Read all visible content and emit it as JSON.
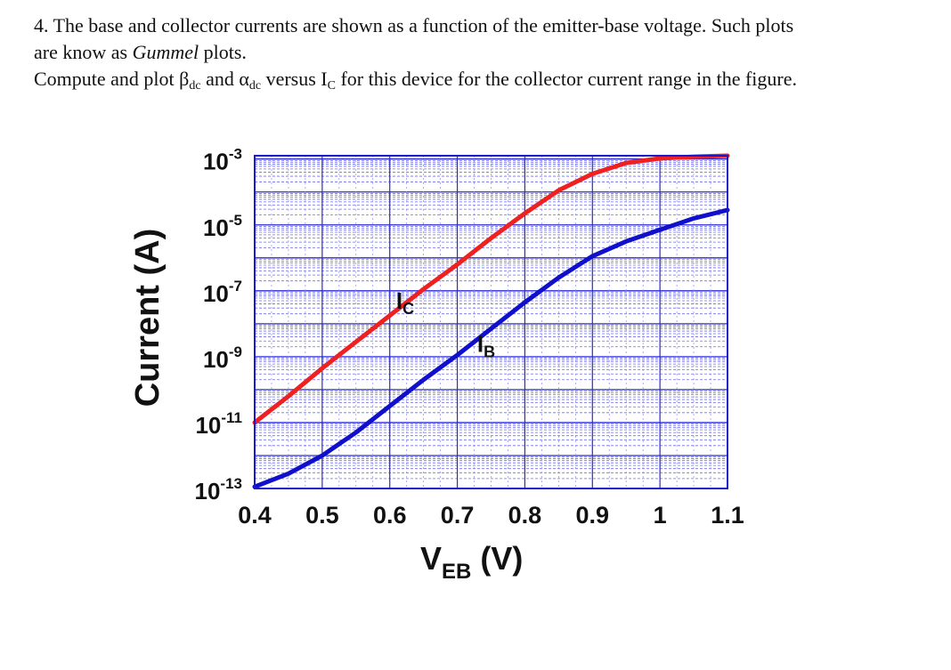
{
  "problem": {
    "line1": "4. The base and collector currents are shown as a function of the emitter-base voltage. Such plots",
    "line2_a": "are know as ",
    "line2_b": "Gummel",
    "line2_c": " plots.",
    "line3_a": "Compute and plot ",
    "beta": "β",
    "beta_sub": "dc",
    "line3_b": " and ",
    "alpha": "α",
    "alpha_sub": "dc",
    "line3_c": " versus I",
    "ic_sub": "C",
    "line3_d": " for this device for the collector current range in the figure."
  },
  "chart_data": {
    "type": "line",
    "title": "",
    "xlabel_main": "V",
    "xlabel_sub": "EB",
    "xlabel_unit": " (V)",
    "ylabel": "Current (A)",
    "xlim": [
      0.4,
      1.1
    ],
    "ylim_log10": [
      -13,
      -2.9
    ],
    "yscale": "log",
    "grid": true,
    "x_ticks": [
      "0.4",
      "0.5",
      "0.6",
      "0.7",
      "0.8",
      "0.9",
      "1",
      "1.1"
    ],
    "x_tick_values": [
      0.4,
      0.5,
      0.6,
      0.7,
      0.8,
      0.9,
      1.0,
      1.1
    ],
    "y_tick_values": [
      -3,
      -5,
      -7,
      -9,
      -11,
      -13
    ],
    "y_tick_base": "10",
    "y_tick_exponents": [
      "-3",
      "-5",
      "-7",
      "-9",
      "-11",
      "-13"
    ],
    "series": [
      {
        "name": "I",
        "name_sub": "C",
        "color": "#ee2020",
        "x": [
          0.4,
          0.45,
          0.5,
          0.55,
          0.6,
          0.65,
          0.7,
          0.75,
          0.8,
          0.85,
          0.9,
          0.95,
          1.0,
          1.05,
          1.1
        ],
        "log10_y": [
          -11.0,
          -10.2,
          -9.35,
          -8.55,
          -7.75,
          -6.95,
          -6.2,
          -5.4,
          -4.65,
          -3.95,
          -3.45,
          -3.12,
          -2.98,
          -2.93,
          -2.9
        ]
      },
      {
        "name": "I",
        "name_sub": "B",
        "color": "#1010cc",
        "x": [
          0.4,
          0.45,
          0.5,
          0.55,
          0.6,
          0.65,
          0.7,
          0.75,
          0.8,
          0.85,
          0.9,
          0.95,
          1.0,
          1.05,
          1.1
        ],
        "log10_y": [
          -12.95,
          -12.55,
          -12.0,
          -11.3,
          -10.5,
          -9.7,
          -8.95,
          -8.15,
          -7.35,
          -6.6,
          -5.95,
          -5.5,
          -5.15,
          -4.8,
          -4.55
        ]
      }
    ]
  }
}
